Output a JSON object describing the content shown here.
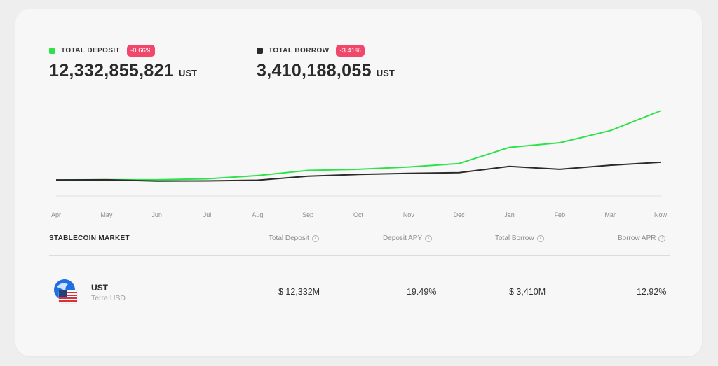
{
  "deposit": {
    "label": "TOTAL DEPOSIT",
    "change": "-0.66%",
    "value": "12,332,855,821",
    "unit": "UST",
    "color": "#2ee24a"
  },
  "borrow": {
    "label": "TOTAL BORROW",
    "change": "-3.41%",
    "value": "3,410,188,055",
    "unit": "UST",
    "color": "#2b2b2b"
  },
  "chart_data": {
    "type": "line",
    "x": [
      "Apr",
      "May",
      "Jun",
      "Jul",
      "Aug",
      "Sep",
      "Oct",
      "Nov",
      "Dec",
      "Jan",
      "Feb",
      "Mar",
      "Now"
    ],
    "series": [
      {
        "name": "TOTAL DEPOSIT",
        "color": "#2ee24a",
        "values": [
          0.35,
          0.4,
          0.38,
          0.55,
          1.1,
          2.0,
          2.2,
          2.6,
          3.2,
          6.0,
          6.8,
          8.9,
          12.33
        ]
      },
      {
        "name": "TOTAL BORROW",
        "color": "#2b2b2b",
        "values": [
          0.35,
          0.38,
          0.15,
          0.18,
          0.3,
          1.0,
          1.3,
          1.5,
          1.6,
          2.7,
          2.2,
          2.9,
          3.41
        ]
      }
    ],
    "ylim": [
      0,
      13
    ],
    "grid": false
  },
  "table": {
    "headers": [
      "STABLECOIN MARKET",
      "Total Deposit",
      "Deposit APY",
      "Total Borrow",
      "Borrow APR"
    ],
    "rows": [
      {
        "symbol": "UST",
        "name": "Terra USD",
        "total_deposit": "$ 12,332M",
        "deposit_apy": "19.49%",
        "total_borrow": "$ 3,410M",
        "borrow_apr": "12.92%"
      }
    ]
  },
  "icons": {
    "info": "info-circle-icon",
    "coin": "ust-coin-icon"
  }
}
